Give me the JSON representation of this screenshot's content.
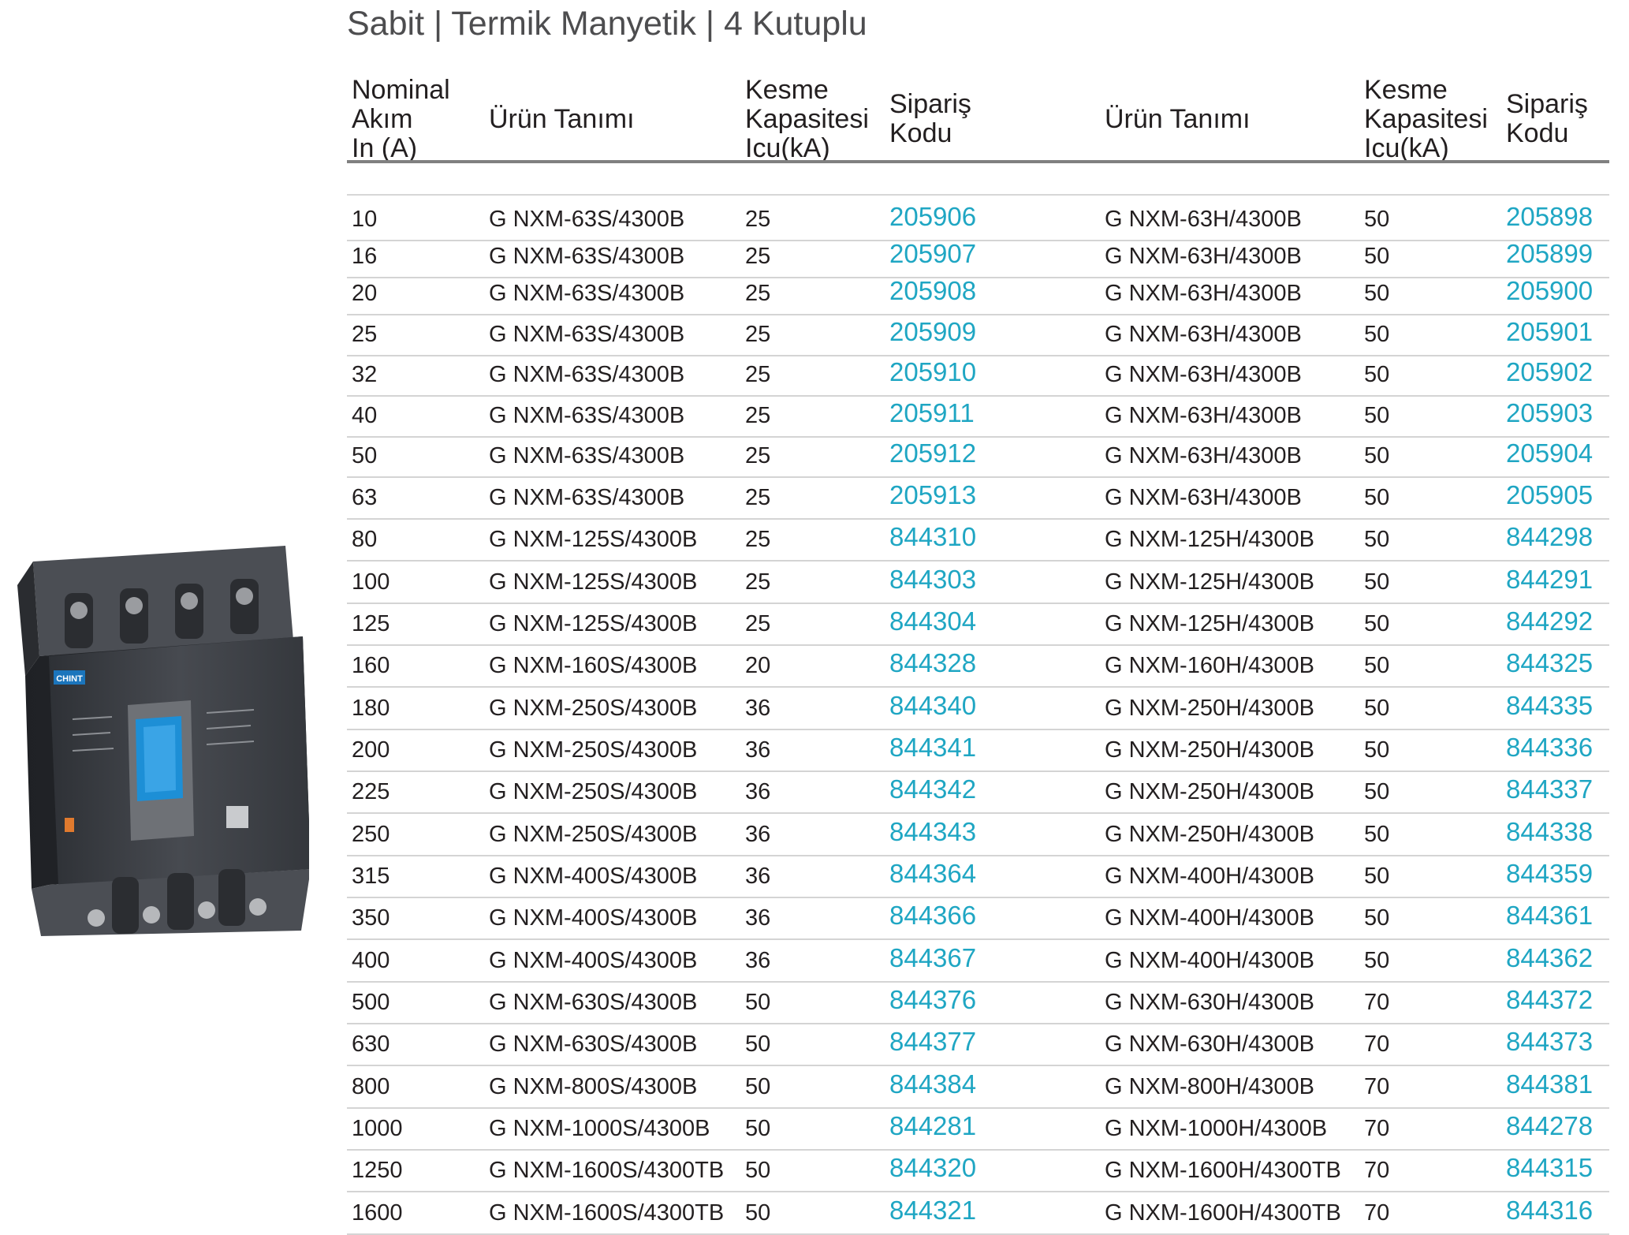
{
  "title": "Sabit | Termik Manyetik | 4 Kutuplu",
  "headers": {
    "nominal": [
      "Nominal",
      "Akım",
      "In (A)"
    ],
    "product_left": "Ürün Tanımı",
    "capacity_left": [
      "Kesme",
      "Kapasitesi",
      "Icu(kA)"
    ],
    "order_left": [
      "Sipariş",
      "Kodu"
    ],
    "product_right": "Ürün Tanımı",
    "capacity_right": [
      "Kesme",
      "Kapasitesi",
      "Icu(kA)"
    ],
    "order_right": [
      "Sipariş",
      "Kodu"
    ]
  },
  "colors": {
    "order_code": "#1fa6c3",
    "title": "#4d4d4f",
    "device_body": "#3a3d42",
    "device_handle": "#1d8fd6",
    "brand_badge": "#1b75bc"
  },
  "product_image": {
    "brand": "CHINT"
  },
  "rows": [
    {
      "in": "10",
      "p1": "G NXM-63S/4300B",
      "k1": "25",
      "c1": "205906",
      "p2": "G NXM-63H/4300B",
      "k2": "50",
      "c2": "205898"
    },
    {
      "in": "16",
      "p1": "G NXM-63S/4300B",
      "k1": "25",
      "c1": "205907",
      "p2": "G NXM-63H/4300B",
      "k2": "50",
      "c2": "205899"
    },
    {
      "in": "20",
      "p1": "G NXM-63S/4300B",
      "k1": "25",
      "c1": "205908",
      "p2": "G NXM-63H/4300B",
      "k2": "50",
      "c2": "205900"
    },
    {
      "in": "25",
      "p1": "G NXM-63S/4300B",
      "k1": "25",
      "c1": "205909",
      "p2": "G NXM-63H/4300B",
      "k2": "50",
      "c2": "205901"
    },
    {
      "in": "32",
      "p1": "G NXM-63S/4300B",
      "k1": "25",
      "c1": "205910",
      "p2": "G NXM-63H/4300B",
      "k2": "50",
      "c2": "205902"
    },
    {
      "in": "40",
      "p1": "G NXM-63S/4300B",
      "k1": "25",
      "c1": "205911",
      "p2": "G NXM-63H/4300B",
      "k2": "50",
      "c2": "205903"
    },
    {
      "in": "50",
      "p1": "G NXM-63S/4300B",
      "k1": "25",
      "c1": "205912",
      "p2": "G NXM-63H/4300B",
      "k2": "50",
      "c2": "205904"
    },
    {
      "in": "63",
      "p1": "G NXM-63S/4300B",
      "k1": "25",
      "c1": "205913",
      "p2": "G NXM-63H/4300B",
      "k2": "50",
      "c2": "205905"
    },
    {
      "in": "80",
      "p1": "G NXM-125S/4300B",
      "k1": "25",
      "c1": "844310",
      "p2": "G NXM-125H/4300B",
      "k2": "50",
      "c2": "844298"
    },
    {
      "in": "100",
      "p1": "G NXM-125S/4300B",
      "k1": "25",
      "c1": "844303",
      "p2": "G NXM-125H/4300B",
      "k2": "50",
      "c2": "844291"
    },
    {
      "in": "125",
      "p1": "G NXM-125S/4300B",
      "k1": "25",
      "c1": "844304",
      "p2": "G NXM-125H/4300B",
      "k2": "50",
      "c2": "844292"
    },
    {
      "in": "160",
      "p1": "G NXM-160S/4300B",
      "k1": "20",
      "c1": "844328",
      "p2": "G NXM-160H/4300B",
      "k2": "50",
      "c2": "844325"
    },
    {
      "in": "180",
      "p1": "G NXM-250S/4300B",
      "k1": "36",
      "c1": "844340",
      "p2": "G NXM-250H/4300B",
      "k2": "50",
      "c2": "844335"
    },
    {
      "in": "200",
      "p1": "G NXM-250S/4300B",
      "k1": "36",
      "c1": "844341",
      "p2": "G NXM-250H/4300B",
      "k2": "50",
      "c2": "844336"
    },
    {
      "in": "225",
      "p1": "G NXM-250S/4300B",
      "k1": "36",
      "c1": "844342",
      "p2": "G NXM-250H/4300B",
      "k2": "50",
      "c2": "844337"
    },
    {
      "in": "250",
      "p1": "G NXM-250S/4300B",
      "k1": "36",
      "c1": "844343",
      "p2": "G NXM-250H/4300B",
      "k2": "50",
      "c2": "844338"
    },
    {
      "in": "315",
      "p1": "G NXM-400S/4300B",
      "k1": "36",
      "c1": "844364",
      "p2": "G NXM-400H/4300B",
      "k2": "50",
      "c2": "844359"
    },
    {
      "in": "350",
      "p1": "G NXM-400S/4300B",
      "k1": "36",
      "c1": "844366",
      "p2": "G NXM-400H/4300B",
      "k2": "50",
      "c2": "844361"
    },
    {
      "in": "400",
      "p1": "G NXM-400S/4300B",
      "k1": "36",
      "c1": "844367",
      "p2": "G NXM-400H/4300B",
      "k2": "50",
      "c2": "844362"
    },
    {
      "in": "500",
      "p1": "G NXM-630S/4300B",
      "k1": "50",
      "c1": "844376",
      "p2": "G NXM-630H/4300B",
      "k2": "70",
      "c2": "844372"
    },
    {
      "in": "630",
      "p1": "G NXM-630S/4300B",
      "k1": "50",
      "c1": "844377",
      "p2": "G NXM-630H/4300B",
      "k2": "70",
      "c2": "844373"
    },
    {
      "in": "800",
      "p1": "G NXM-800S/4300B",
      "k1": "50",
      "c1": "844384",
      "p2": "G NXM-800H/4300B",
      "k2": "70",
      "c2": "844381"
    },
    {
      "in": "1000",
      "p1": "G NXM-1000S/4300B",
      "k1": "50",
      "c1": "844281",
      "p2": "G NXM-1000H/4300B",
      "k2": "70",
      "c2": "844278"
    },
    {
      "in": "1250",
      "p1": "G NXM-1600S/4300TB",
      "k1": "50",
      "c1": "844320",
      "p2": "G NXM-1600H/4300TB",
      "k2": "70",
      "c2": "844315"
    },
    {
      "in": "1600",
      "p1": "G NXM-1600S/4300TB",
      "k1": "50",
      "c1": "844321",
      "p2": "G NXM-1600H/4300TB",
      "k2": "70",
      "c2": "844316"
    }
  ]
}
